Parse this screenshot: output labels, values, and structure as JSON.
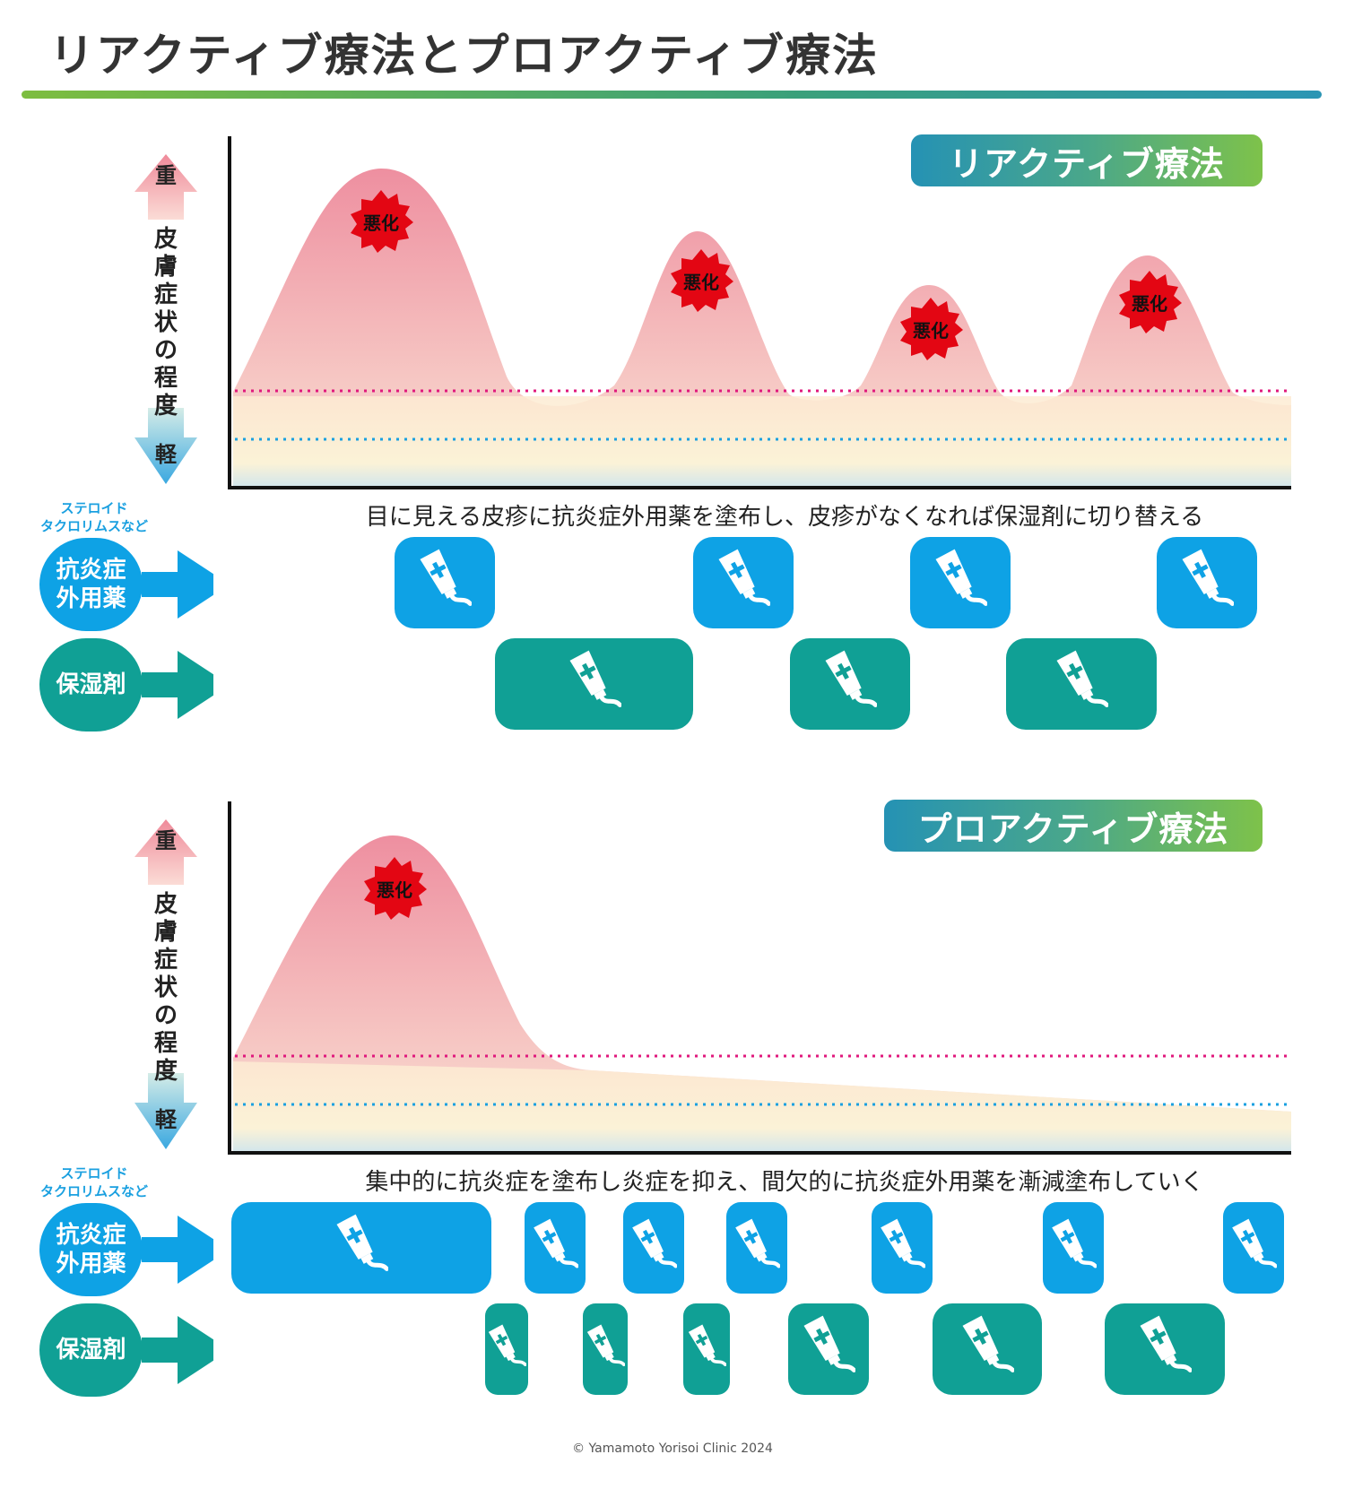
{
  "title": "リアクティブ療法とプロアクティブ療法",
  "axis": {
    "label": "皮膚症状の程度",
    "high": "重",
    "low": "軽"
  },
  "flare_label": "悪化",
  "side_note": [
    "ステロイド",
    "タクロリムスなど"
  ],
  "rows": {
    "anti_inflammatory": [
      "抗炎症",
      "外用薬"
    ],
    "moisturizer": "保湿剤"
  },
  "panels": [
    {
      "badge": "リアクティブ療法",
      "caption": "目に見える皮疹に抗炎症外用薬を塗布し、皮疹がなくなれば保湿剤に切り替える"
    },
    {
      "badge": "プロアクティブ療法",
      "caption": "集中的に抗炎症を塗布し炎症を抑え、間欠的に抗炎症外用薬を漸減塗布していく"
    }
  ],
  "colors": {
    "anti_inflammatory": "#0ea2e5",
    "moisturizer": "#10a095",
    "flare": "#e30613",
    "threshold_high": "#e0197d",
    "threshold_low": "#1aa0e0"
  },
  "copyright": "© Yamamoto Yorisoi Clinic 2024"
}
